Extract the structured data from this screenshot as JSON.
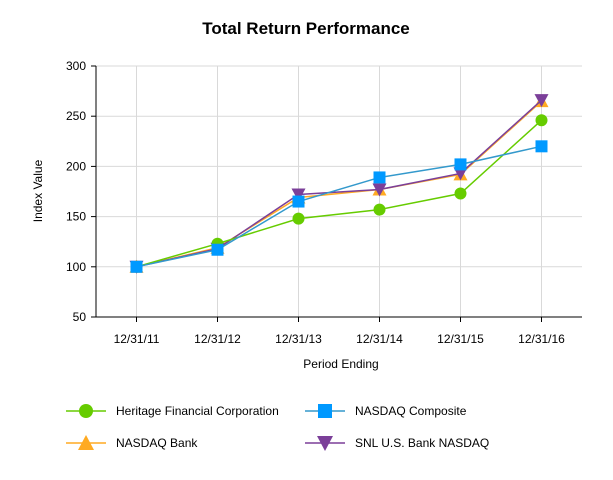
{
  "chart_data": {
    "type": "line",
    "title": "Total Return Performance",
    "xlabel": "Period Ending",
    "ylabel": "Index Value",
    "ylim": [
      50,
      300
    ],
    "yticks": [
      50,
      100,
      150,
      200,
      250,
      300
    ],
    "grid": true,
    "legend_position": "bottom",
    "categories": [
      "12/31/11",
      "12/31/12",
      "12/31/13",
      "12/31/14",
      "12/31/15",
      "12/31/16"
    ],
    "series": [
      {
        "name": "Heritage Financial Corporation",
        "values": [
          100,
          123,
          148,
          157,
          173,
          246
        ],
        "color": "#66cc00",
        "marker": "circle"
      },
      {
        "name": "NASDAQ Composite",
        "values": [
          100,
          117,
          165,
          189,
          202,
          220
        ],
        "color": "#0099ff",
        "line_color": "#3399cc",
        "marker": "square"
      },
      {
        "name": "NASDAQ Bank",
        "values": [
          100,
          119,
          169,
          177,
          192,
          265
        ],
        "color": "#ffaa22",
        "marker": "triangle-up"
      },
      {
        "name": "SNL U.S. Bank NASDAQ",
        "values": [
          100,
          118,
          172,
          177,
          193,
          266
        ],
        "color": "#7b3f99",
        "marker": "triangle-down"
      }
    ]
  }
}
